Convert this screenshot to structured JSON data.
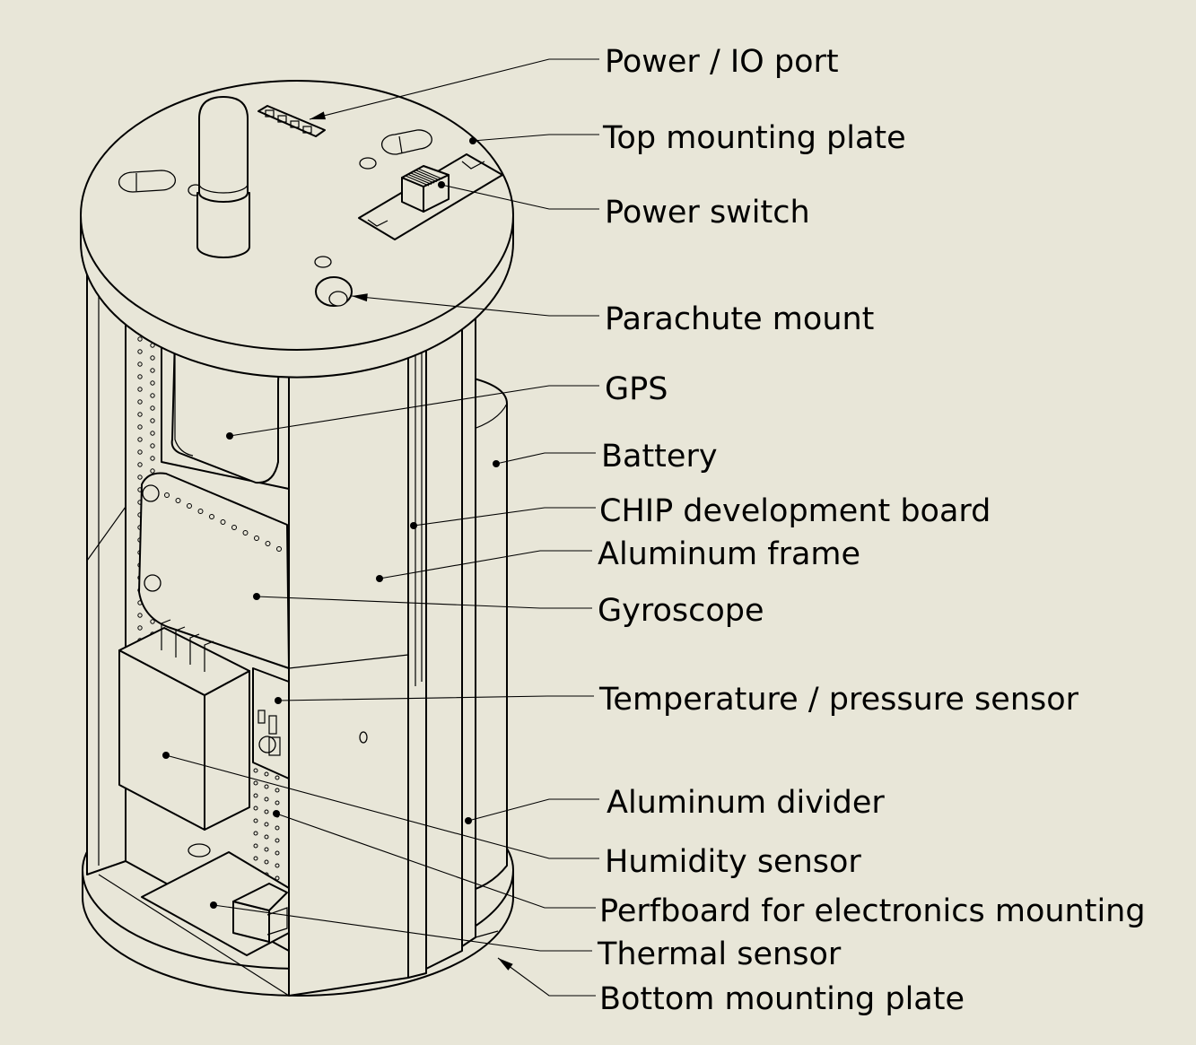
{
  "labels": {
    "power_io_port": "Power / IO port",
    "top_mounting_plate": "Top mounting plate",
    "power_switch": "Power switch",
    "parachute_mount": "Parachute mount",
    "gps": "GPS",
    "battery": "Battery",
    "chip_board": "CHIP development board",
    "aluminum_frame": "Aluminum frame",
    "gyroscope": "Gyroscope",
    "temp_pressure": "Temperature / pressure sensor",
    "aluminum_divider": "Aluminum divider",
    "humidity_sensor": "Humidity sensor",
    "perfboard": "Perfboard for electronics mounting",
    "thermal_sensor": "Thermal sensor",
    "bottom_mounting_plate": "Bottom mounting plate"
  },
  "colors": {
    "background": "#e8e6d8",
    "line": "#000000"
  }
}
